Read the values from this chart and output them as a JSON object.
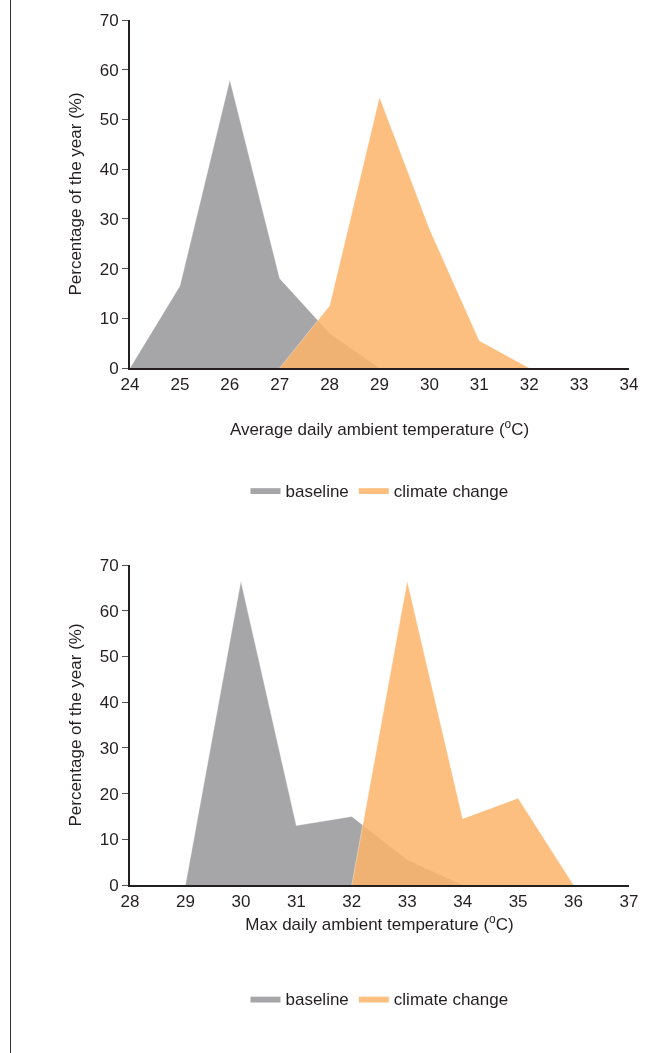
{
  "chart_data": [
    {
      "type": "area",
      "xlabel": "Average daily ambient temperature ($^{o}$C)",
      "ylabel": "Percentage of the year (%)",
      "series": [
        {
          "name": "baseline",
          "color": "#96979a",
          "x": [
            24,
            25,
            26,
            27,
            28,
            29,
            30,
            31,
            32,
            33,
            34
          ],
          "values": [
            0,
            16.5,
            58,
            18,
            7,
            0,
            0,
            0,
            0,
            0,
            0
          ]
        },
        {
          "name": "climate change",
          "color": "#fbb46a",
          "x": [
            27,
            28,
            29,
            30,
            31,
            32,
            33,
            34
          ],
          "values": [
            0,
            12.5,
            54.5,
            28,
            5.5,
            0,
            0,
            0
          ]
        }
      ],
      "xlim": [
        24,
        34
      ],
      "xticks": [
        24,
        25,
        26,
        27,
        28,
        29,
        30,
        31,
        32,
        33,
        34
      ],
      "ylim": [
        0,
        70
      ],
      "yticks": [
        0,
        10,
        20,
        30,
        40,
        50,
        60,
        70
      ],
      "grid": false,
      "legend": "bottom"
    },
    {
      "type": "area",
      "xlabel": "Max daily ambient temperature ($^{o}$C)",
      "ylabel": "Percentage of the year (%)",
      "series": [
        {
          "name": "baseline",
          "color": "#96979a",
          "x": [
            28,
            29,
            30,
            31,
            32,
            33,
            34,
            35,
            36,
            37
          ],
          "values": [
            0,
            0,
            66.5,
            13,
            15,
            5.5,
            0,
            0,
            0,
            0
          ]
        },
        {
          "name": "climate change",
          "color": "#fbb46a",
          "x": [
            32,
            33,
            34,
            35,
            36
          ],
          "values": [
            0,
            66.5,
            14.5,
            19,
            0
          ]
        }
      ],
      "xlim": [
        28,
        37
      ],
      "xticks": [
        28,
        29,
        30,
        31,
        32,
        33,
        34,
        35,
        36,
        37
      ],
      "ylim": [
        0,
        70
      ],
      "yticks": [
        0,
        10,
        20,
        30,
        40,
        50,
        60,
        70
      ],
      "grid": false,
      "legend": "bottom"
    }
  ]
}
